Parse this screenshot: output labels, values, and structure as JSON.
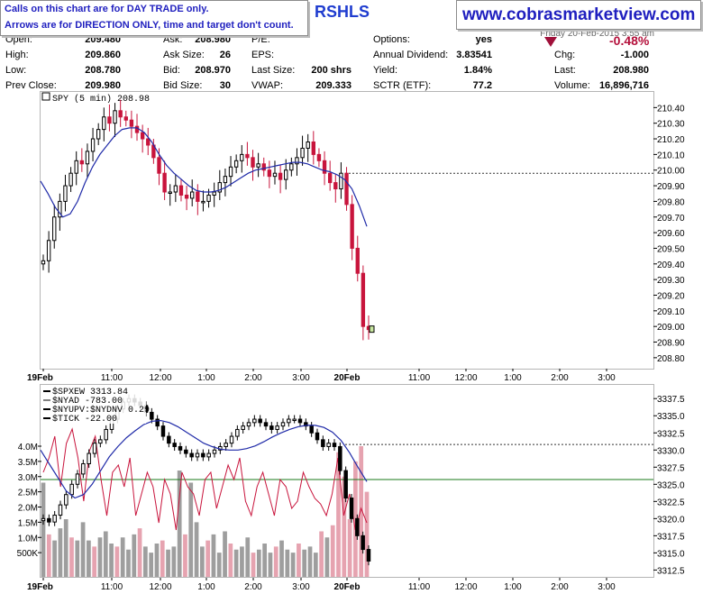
{
  "notice": {
    "line1": "Calls on this chart are for DAY TRADE only.",
    "line2": "Arrows are for DIRECTION ONLY, time and target don't count."
  },
  "symbol": "RSHLS",
  "site": "www.cobrasmarketview.com",
  "date_text": "Friday 20-Feb-2015 3:55 am",
  "quote": {
    "open_label": "Open:",
    "open": "209.480",
    "high_label": "High:",
    "high": "209.860",
    "low_label": "Low:",
    "low": "208.780",
    "prev_label": "Prev Close:",
    "prev": "209.980",
    "ask_label": "Ask:",
    "ask": "208.980",
    "asksize_label": "Ask Size:",
    "asksize": "26",
    "bid_label": "Bid:",
    "bid": "208.970",
    "bidsize_label": "Bid Size:",
    "bidsize": "30",
    "pe_label": "P/E:",
    "pe": "",
    "eps_label": "EPS:",
    "eps": "",
    "lastsize_label": "Last Size:",
    "lastsize": "200 shrs",
    "vwap_label": "VWAP:",
    "vwap": "209.333",
    "options_label": "Options:",
    "options": "yes",
    "div_label": "Annual Dividend:",
    "div": "3.83541",
    "yield_label": "Yield:",
    "yield": "1.84%",
    "sctr_label": "SCTR (ETF):",
    "sctr": "77.2",
    "change_pct": "-0.48%",
    "chg_label": "Chg:",
    "chg": "-1.000",
    "last_label": "Last:",
    "last": "208.980",
    "volume_label": "Volume:",
    "volume": "16,896,716"
  },
  "colors": {
    "up_candle": "#000000",
    "down_candle": "#c8143c",
    "ma_line": "#1f2aa8",
    "ratio_line": "#c8143c",
    "volume_gray": "#9e9e9e",
    "volume_pink": "#e6a3b0",
    "tick_line": "#1a7a1a",
    "last_price_marker": "#c8e6a0"
  },
  "chart_data": [
    {
      "type": "candlestick",
      "title": "SPY (5 min) 208.98",
      "ylim": [
        208.73,
        210.5
      ],
      "yticks": [
        "210.40",
        "210.30",
        "210.20",
        "210.10",
        "210.00",
        "209.90",
        "209.80",
        "209.70",
        "209.60",
        "209.50",
        "209.40",
        "209.30",
        "209.20",
        "209.10",
        "209.00",
        "208.90",
        "208.80"
      ],
      "reference_line": 209.98,
      "last_price": 208.98,
      "x_ticks": [
        "19Feb",
        "11:00",
        "12:00",
        "1:00",
        "2:00",
        "3:00",
        "20Feb",
        "11:00",
        "12:00",
        "1:00",
        "2:00",
        "3:00"
      ],
      "candle_count": 78,
      "close_path": [
        209.42,
        209.55,
        209.7,
        209.8,
        209.9,
        209.98,
        210.06,
        210.04,
        210.12,
        210.2,
        210.26,
        210.34,
        210.3,
        210.38,
        210.34,
        210.32,
        210.28,
        210.24,
        210.2,
        210.16,
        210.08,
        209.98,
        209.86,
        209.86,
        209.9,
        209.84,
        209.82,
        209.86,
        209.8,
        209.8,
        209.84,
        209.86,
        209.92,
        209.96,
        210.02,
        210.06,
        210.1,
        210.08,
        210.02,
        210.04,
        210.0,
        209.96,
        209.98,
        209.94,
        210.0,
        210.04,
        210.08,
        210.14,
        210.18,
        210.1,
        210.06,
        209.98,
        209.92,
        209.88,
        209.98,
        209.78,
        209.5,
        209.34,
        209.0,
        208.98
      ],
      "ma": [
        209.93,
        209.85,
        209.76,
        209.7,
        209.72,
        209.8,
        209.92,
        210.02,
        210.1,
        210.16,
        210.22,
        210.26,
        210.27,
        210.27,
        210.24,
        210.18,
        210.1,
        210.03,
        209.98,
        209.94,
        209.9,
        209.87,
        209.86,
        209.86,
        209.87,
        209.89,
        209.92,
        209.95,
        209.98,
        210.0,
        210.01,
        210.02,
        210.03,
        210.04,
        210.05,
        210.05,
        210.04,
        210.02,
        210.0,
        209.99,
        209.97,
        209.94,
        209.88,
        209.77,
        209.64
      ]
    },
    {
      "type": "line+bar",
      "title": "$SPXEW 3313.84",
      "legend": [
        "$SPXEW 3313.84",
        "$NYAD -783.00",
        "$NYUPV:$NYDNV 0.29",
        "$TICK -22.00"
      ],
      "ylim": [
        3311.5,
        3339.5
      ],
      "yticks": [
        "3337.5",
        "3335.0",
        "3332.5",
        "3330.0",
        "3327.5",
        "3325.0",
        "3322.5",
        "3320.0",
        "3317.5",
        "3315.0",
        "3312.5"
      ],
      "volume_ticks": [
        "4.0M",
        "3.5M",
        "3.0M",
        "2.5M",
        "2.0M",
        "1.5M",
        "1.0M",
        "500K"
      ],
      "reference_line": 3330.8,
      "tick_zero_line": 3325.7,
      "x_ticks": [
        "19Feb",
        "11:00",
        "12:00",
        "1:00",
        "2:00",
        "3:00",
        "20Feb",
        "11:00",
        "12:00",
        "1:00",
        "2:00",
        "3:00"
      ],
      "close_path": [
        3320,
        3319.5,
        3320.5,
        3322,
        3323.5,
        3325,
        3326.5,
        3328,
        3329.5,
        3331,
        3331.5,
        3333,
        3334.5,
        3336,
        3337,
        3337.5,
        3337,
        3336.5,
        3335.5,
        3334.5,
        3333.5,
        3332,
        3331,
        3330.5,
        3330,
        3329.5,
        3329,
        3329.5,
        3329,
        3329.5,
        3330,
        3330.5,
        3331,
        3332,
        3333,
        3333.5,
        3334,
        3334.5,
        3334,
        3333.5,
        3333,
        3333.5,
        3334,
        3334.5,
        3334.5,
        3334,
        3333.5,
        3332.5,
        3331.5,
        3330.5,
        3331,
        3330.5,
        3327,
        3323,
        3320,
        3317.5,
        3315.5,
        3313.8
      ],
      "ma": [
        3330,
        3328,
        3326,
        3324,
        3323,
        3323.5,
        3325,
        3327,
        3329,
        3330.5,
        3331.8,
        3332.8,
        3333.7,
        3334.2,
        3334.3,
        3334,
        3333.4,
        3332.6,
        3331.8,
        3331,
        3330.5,
        3330.1,
        3330,
        3330,
        3330.2,
        3330.6,
        3331.2,
        3331.9,
        3332.5,
        3333,
        3333.4,
        3333.6,
        3333.6,
        3333.3,
        3332.6,
        3331.4,
        3329.6,
        3327.4,
        3325.4
      ],
      "ratio": [
        0.6,
        0.7,
        0.85,
        0.5,
        0.8,
        0.9,
        0.7,
        0.4,
        0.75,
        0.85,
        0.55,
        0.3,
        0.6,
        0.65,
        0.5,
        0.7,
        0.3,
        0.45,
        0.6,
        0.5,
        0.25,
        0.55,
        0.45,
        0.2,
        0.6,
        0.5,
        0.45,
        0.3,
        0.55,
        0.6,
        0.35,
        0.5,
        0.65,
        0.55,
        0.7,
        0.4,
        0.3,
        0.5,
        0.6,
        0.45,
        0.3,
        0.55,
        0.5,
        0.35,
        0.4,
        0.6,
        0.5,
        0.42,
        0.38,
        0.3,
        0.45,
        0.7,
        0.3,
        0.45,
        0.2,
        0.35,
        0.25
      ],
      "volume_m": [
        2.8,
        1.1,
        0.9,
        1.3,
        1.6,
        1.0,
        0.9,
        1.5,
        0.9,
        0.7,
        1.0,
        1.2,
        0.8,
        0.7,
        1.0,
        0.6,
        1.1,
        1.3,
        0.7,
        0.5,
        0.8,
        0.9,
        0.6,
        0.7,
        3.2,
        1.1,
        2.8,
        1.5,
        0.7,
        0.9,
        1.1,
        0.5,
        1.2,
        0.8,
        0.6,
        0.7,
        1.0,
        0.5,
        0.6,
        0.8,
        0.5,
        0.7,
        0.9,
        0.6,
        0.5,
        0.8,
        0.6,
        0.7,
        0.5,
        1.2,
        1.0,
        1.4,
        3.8,
        3.0,
        1.6,
        3.5,
        4.0,
        2.5
      ]
    }
  ]
}
